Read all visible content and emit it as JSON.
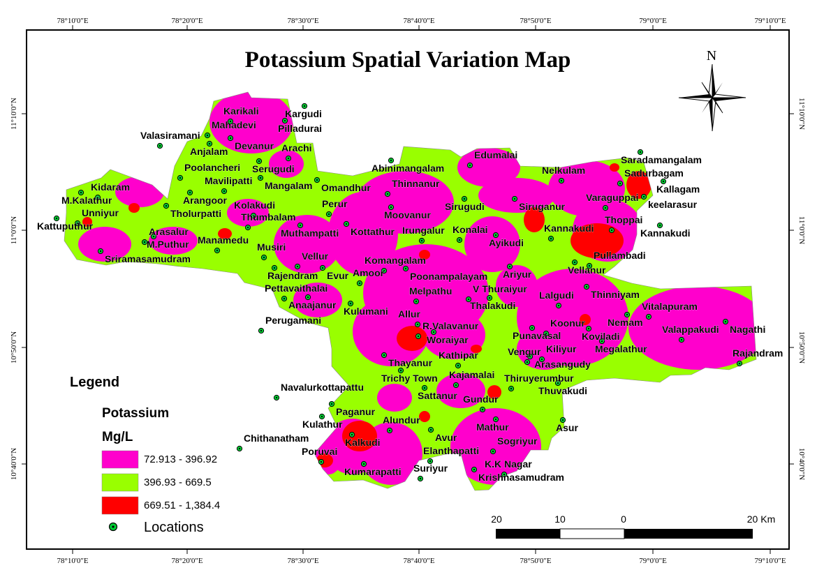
{
  "title": "Potassium Spatial Variation Map",
  "colors": {
    "low": "#ff00cc",
    "mid": "#99ff00",
    "high": "#ff0000",
    "location": "#00cc33"
  },
  "graticule": {
    "top": [
      "78°10'0\"E",
      "78°20'0\"E",
      "78°30'0\"E",
      "78°40'0\"E",
      "78°50'0\"E",
      "79°0'0\"E",
      "79°10'0\"E"
    ],
    "bottom": [
      "78°10'0\"E",
      "78°20'0\"E",
      "78°30'0\"E",
      "78°40'0\"E",
      "78°50'0\"E",
      "79°0'0\"E",
      "79°10'0\"E"
    ],
    "left": [
      "11°10'0\"N",
      "11°0'0\"N",
      "10°50'0\"N",
      "10°40'0\"N"
    ],
    "right": [
      "11°10'0\"N",
      "11°0'0\"N",
      "10°50'0\"N",
      "10°40'0\"N"
    ]
  },
  "north_label": "N",
  "legend": {
    "title": "Legend",
    "variable": "Potassium",
    "unit": "Mg/L",
    "classes": [
      {
        "label": "72.913 - 396.92",
        "color": "#ff00cc"
      },
      {
        "label": "396.93 - 669.5",
        "color": "#99ff00"
      },
      {
        "label": "669.51 - 1,384.4",
        "color": "#ff0000"
      }
    ],
    "locations_label": "Locations"
  },
  "scale_bar": {
    "labels": [
      "20",
      "10",
      "0",
      "20 Km"
    ]
  },
  "places": [
    "Karikali",
    "Kargudi",
    "Mahadevi",
    "Pilladurai",
    "Valasiramani",
    "Devanur",
    "Arachi",
    "Anjalam",
    "Poolancheri",
    "Serugudi",
    "Mavilipatti",
    "Mangalam",
    "Kidaram",
    "M.Kalathur",
    "Unniyur",
    "Arangoor",
    "Kolakudi",
    "Tholurpatti",
    "Thumbalam",
    "Kattuputhur",
    "Arasalur",
    "M.Puthur",
    "Manamedu",
    "Sriramasamudram",
    "Musiri",
    "Muthampatti",
    "Vellur",
    "Rajendram",
    "Pettavaithalai",
    "Evur",
    "Amoor",
    "Anaajanur",
    "Perugamani",
    "Kulumani",
    "Allur",
    "Omandhur",
    "Perur",
    "Abinimangalam",
    "Thinnanur",
    "Moovanur",
    "Irungalur",
    "Kottathur",
    "Konalai",
    "Sirugudi",
    "Edumalai",
    "Ayikudi",
    "Komangalam",
    "Poonampalayam",
    "Melpathu",
    "Thalakudi",
    "V Thuraiyur",
    "Ariyur",
    "Nelkulam",
    "Siruganur",
    "Kannakudi",
    "Saradamangalam",
    "Sadurbagam",
    "Kallagam",
    "Varaguppai",
    "keelarasur",
    "Thoppai",
    "Kannakudi",
    "Pullambadi",
    "Vellanur",
    "Lalgudi",
    "Thinniyam",
    "Vitalapuram",
    "Nemam",
    "Koonur",
    "Koviladi",
    "Valappakudi",
    "Nagathi",
    "Rajandram",
    "Punavasal",
    "Kiliyur",
    "Megalathur",
    "Vengur",
    "Arasangudy",
    "Thiruyerumbur",
    "Thuvakudi",
    "R.Valavanur",
    "Woraiyar",
    "Kathipar",
    "Thayanur",
    "Kajamalai",
    "Trichy Town",
    "Navalurkottapattu",
    "Sattanur",
    "Gundur",
    "Paganur",
    "Alundur",
    "Kulathur",
    "Chithanatham",
    "Kalkudi",
    "Poruvai",
    "Avur",
    "Elanthapatti",
    "Mathur",
    "Sogriyur",
    "Asur",
    "K.K Nagar",
    "Krishnasamudram",
    "Suriyur",
    "Kumarapatti"
  ]
}
